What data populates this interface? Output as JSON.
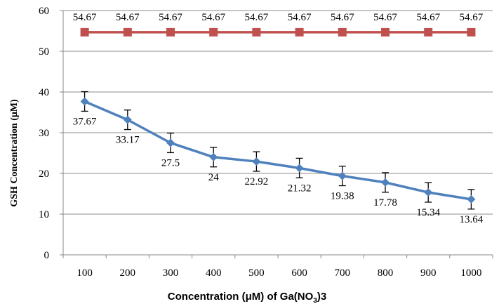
{
  "chart_data": {
    "type": "line",
    "categories": [
      "100",
      "200",
      "300",
      "400",
      "500",
      "600",
      "700",
      "800",
      "900",
      "1000"
    ],
    "xlabel_main": "Concentration (μM) of Ga(NO",
    "xlabel_sub": "3",
    "xlabel_tail": ")3",
    "ylabel": "GSH Concentration (μM)",
    "ylim": [
      0,
      60
    ],
    "yticks": [
      "0",
      "10",
      "20",
      "30",
      "40",
      "50",
      "60"
    ],
    "grid": "horizontal",
    "series": [
      {
        "color": "#C0504D",
        "marker": "square",
        "values": [
          54.67,
          54.67,
          54.67,
          54.67,
          54.67,
          54.67,
          54.67,
          54.67,
          54.67,
          54.67
        ],
        "labels": [
          "54.67",
          "54.67",
          "54.67",
          "54.67",
          "54.67",
          "54.67",
          "54.67",
          "54.67",
          "54.67",
          "54.67"
        ]
      },
      {
        "color": "#4F81BD",
        "marker": "diamond",
        "values": [
          37.67,
          33.17,
          27.5,
          24,
          22.92,
          21.32,
          19.38,
          17.78,
          15.34,
          13.64
        ],
        "labels": [
          "37.67",
          "33.17",
          "27.5",
          "24",
          "22.92",
          "21.32",
          "19.38",
          "17.78",
          "15.34",
          "13.64"
        ],
        "error": [
          2.4,
          2.4,
          2.4,
          2.4,
          2.4,
          2.4,
          2.4,
          2.4,
          2.4,
          2.4
        ]
      }
    ]
  }
}
